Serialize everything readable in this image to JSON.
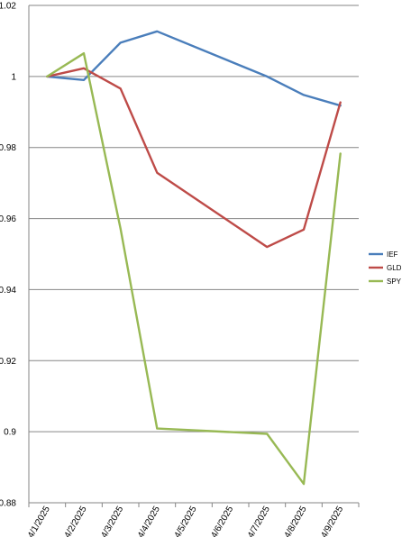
{
  "chart_data": {
    "type": "line",
    "title": "",
    "xlabel": "",
    "ylabel": "",
    "categories": [
      "4/1/2025",
      "4/2/2025",
      "4/3/2025",
      "4/4/2025",
      "4/5/2025",
      "4/6/2025",
      "4/7/2025",
      "4/8/2025",
      "4/9/2025"
    ],
    "ylim": [
      0.88,
      1.02
    ],
    "yticks": [
      "0.88",
      "0.9",
      "0.92",
      "0.94",
      "0.96",
      "0.98",
      "1",
      "1.02"
    ],
    "grid": "horizontal",
    "legend": "right",
    "series": [
      {
        "name": "IEF",
        "color": "#4a7ebb",
        "points": [
          [
            "4/1/2025",
            1.0
          ],
          [
            "4/2/2025",
            0.999
          ],
          [
            "4/3/2025",
            1.0095
          ],
          [
            "4/4/2025",
            1.0127
          ],
          [
            "4/7/2025",
            1.0
          ],
          [
            "4/8/2025",
            0.9948
          ],
          [
            "4/9/2025",
            0.9918
          ]
        ]
      },
      {
        "name": "GLD",
        "color": "#be4b48",
        "points": [
          [
            "4/1/2025",
            1.0
          ],
          [
            "4/2/2025",
            1.0023
          ],
          [
            "4/3/2025",
            0.9966
          ],
          [
            "4/4/2025",
            0.9729
          ],
          [
            "4/7/2025",
            0.952
          ],
          [
            "4/8/2025",
            0.9569
          ],
          [
            "4/9/2025",
            0.9927
          ]
        ]
      },
      {
        "name": "SPY",
        "color": "#98b954",
        "points": [
          [
            "4/1/2025",
            1.0
          ],
          [
            "4/2/2025",
            1.0065
          ],
          [
            "4/3/2025",
            0.9572
          ],
          [
            "4/4/2025",
            0.9009
          ],
          [
            "4/7/2025",
            0.8994
          ],
          [
            "4/8/2025",
            0.8853
          ],
          [
            "4/9/2025",
            0.9783
          ]
        ]
      }
    ]
  }
}
